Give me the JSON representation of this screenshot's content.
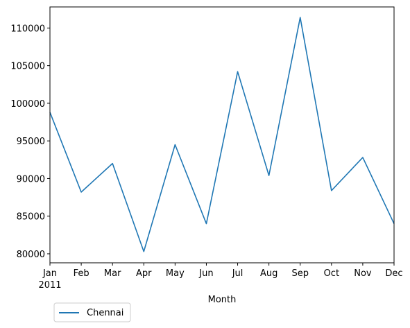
{
  "chart_data": {
    "type": "line",
    "title": "",
    "xlabel": "Month",
    "ylabel": "",
    "categories": [
      "Jan",
      "Feb",
      "Mar",
      "Apr",
      "May",
      "Jun",
      "Jul",
      "Aug",
      "Sep",
      "Oct",
      "Nov",
      "Dec"
    ],
    "x_year_label": "2011",
    "yticks": [
      80000,
      85000,
      90000,
      95000,
      100000,
      105000,
      110000
    ],
    "ylim": [
      78800,
      112800
    ],
    "grid": false,
    "legend_position": "below-left",
    "series": [
      {
        "name": "Chennai",
        "color": "#1f77b4",
        "values": [
          98800,
          88200,
          92000,
          80300,
          94500,
          84000,
          104200,
          90400,
          111400,
          88400,
          92800,
          84000
        ]
      }
    ]
  }
}
